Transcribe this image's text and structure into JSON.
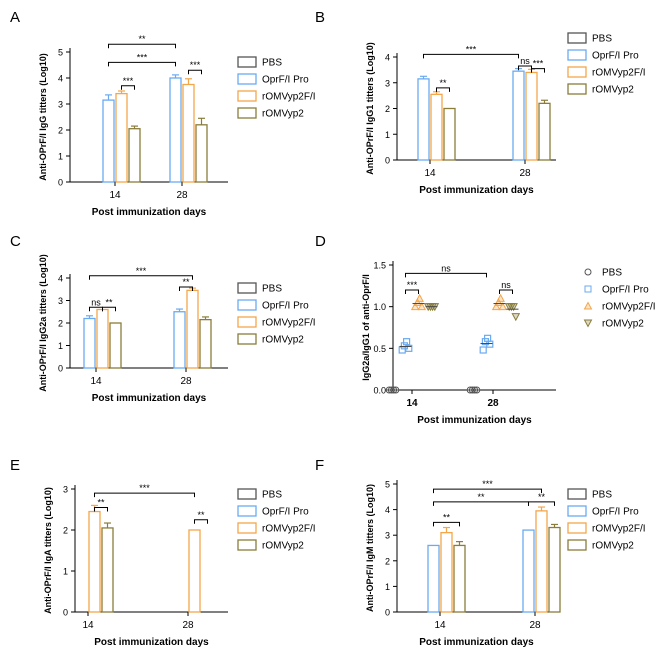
{
  "figure": {
    "panel_labels": [
      "A",
      "B",
      "C",
      "D",
      "E",
      "F"
    ]
  },
  "colors": {
    "PBS": "#555555",
    "OprF/I Pro": "#6aaaf0",
    "rOMVyp2F/I": "#f4a64a",
    "rOMVyp2": "#8a7d3a",
    "axis": "#000000"
  },
  "chart_data": [
    {
      "id": "A",
      "type": "bar",
      "panel_label": "A",
      "ylabel": "Anti-OPrF/I IgG titters (Log10)",
      "xlabel": "Post immunization days",
      "categories": [
        "14",
        "28"
      ],
      "ylim": [
        0,
        5
      ],
      "yticks": [
        "0",
        "1",
        "2",
        "3",
        "4",
        "5"
      ],
      "series": [
        {
          "name": "PBS",
          "values": [
            0,
            0
          ],
          "errors": [
            0,
            0
          ]
        },
        {
          "name": "OprF/I Pro",
          "values": [
            3.15,
            4.0
          ],
          "errors": [
            0.2,
            0.12
          ]
        },
        {
          "name": "rOMVyp2F/I",
          "values": [
            3.4,
            3.75
          ],
          "errors": [
            0.1,
            0.22
          ]
        },
        {
          "name": "rOMVyp2",
          "values": [
            2.05,
            2.2
          ],
          "errors": [
            0.1,
            0.25
          ]
        }
      ],
      "annotations": [
        {
          "label": "**",
          "from_cat": 0,
          "from_series": 1,
          "to_cat": 1,
          "to_series": 1,
          "y": 5.3
        },
        {
          "label": "***",
          "from_cat": 0,
          "from_series": 1,
          "to_cat": 1,
          "to_series": 1,
          "y": 4.6
        },
        {
          "label": "***",
          "from_cat": 0,
          "from_series": 2,
          "to_cat": 0,
          "to_series": 3,
          "y": 3.7
        },
        {
          "label": "***",
          "from_cat": 1,
          "from_series": 2,
          "to_cat": 1,
          "to_series": 3,
          "y": 4.3
        }
      ]
    },
    {
      "id": "B",
      "type": "bar",
      "panel_label": "B",
      "ylabel": "Anti-OPrF/I IgG1 titters (Log10)",
      "xlabel": "Post immunization days",
      "categories": [
        "14",
        "28"
      ],
      "ylim": [
        0,
        4
      ],
      "yticks": [
        "0",
        "1",
        "2",
        "3",
        "4"
      ],
      "series": [
        {
          "name": "PBS",
          "values": [
            0,
            0
          ],
          "errors": [
            0,
            0
          ]
        },
        {
          "name": "OprF/I Pro",
          "values": [
            3.15,
            3.45
          ],
          "errors": [
            0.1,
            0.1
          ]
        },
        {
          "name": "rOMVyp2F/I",
          "values": [
            2.55,
            3.4
          ],
          "errors": [
            0.1,
            0.12
          ]
        },
        {
          "name": "rOMVyp2",
          "values": [
            2.0,
            2.2
          ],
          "errors": [
            0,
            0.12
          ]
        }
      ],
      "annotations": [
        {
          "label": "***",
          "from_cat": 0,
          "from_series": 1,
          "to_cat": 1,
          "to_series": 1,
          "y": 4.1
        },
        {
          "label": "ns",
          "from_cat": 1,
          "from_series": 1,
          "to_cat": 1,
          "to_series": 2,
          "y": 3.65
        },
        {
          "label": "**",
          "from_cat": 0,
          "from_series": 2,
          "to_cat": 0,
          "to_series": 3,
          "y": 2.8
        },
        {
          "label": "***",
          "from_cat": 1,
          "from_series": 2,
          "to_cat": 1,
          "to_series": 3,
          "y": 3.55
        }
      ]
    },
    {
      "id": "C",
      "type": "bar",
      "panel_label": "C",
      "ylabel": "Anti-OPrF/I IgG2a titters (Log10)",
      "xlabel": "Post immunization days",
      "categories": [
        "14",
        "28"
      ],
      "ylim": [
        0,
        4
      ],
      "yticks": [
        "0",
        "1",
        "2",
        "3",
        "4"
      ],
      "series": [
        {
          "name": "PBS",
          "values": [
            0,
            0
          ],
          "errors": [
            0,
            0
          ]
        },
        {
          "name": "OprF/I Pro",
          "values": [
            2.2,
            2.5
          ],
          "errors": [
            0.12,
            0.12
          ]
        },
        {
          "name": "rOMVyp2F/I",
          "values": [
            2.6,
            3.45
          ],
          "errors": [
            0,
            0.1
          ]
        },
        {
          "name": "rOMVyp2",
          "values": [
            2.0,
            2.15
          ],
          "errors": [
            0,
            0.12
          ]
        }
      ],
      "annotations": [
        {
          "label": "***",
          "from_cat": 0,
          "from_series": 1,
          "to_cat": 1,
          "to_series": 2,
          "y": 4.1
        },
        {
          "label": "**",
          "from_cat": 1,
          "from_series": 1,
          "to_cat": 1,
          "to_series": 2,
          "y": 3.6
        },
        {
          "label": "ns",
          "from_cat": 0,
          "from_series": 1,
          "to_cat": 0,
          "to_series": 2,
          "y": 2.7
        },
        {
          "label": "**",
          "from_cat": 0,
          "from_series": 2,
          "to_cat": 0,
          "to_series": 3,
          "y": 2.7
        }
      ]
    },
    {
      "id": "D",
      "type": "scatter",
      "panel_label": "D",
      "ylabel": "IgG2a/IgG1 of anti-OprF/I",
      "xlabel": "Post immunization days",
      "categories": [
        "14",
        "28"
      ],
      "ylim": [
        0,
        1.5
      ],
      "yticks": [
        "0.0",
        "0.5",
        "1.0",
        "1.5"
      ],
      "series": [
        {
          "name": "PBS",
          "marker": "circle",
          "points": [
            [
              0,
              0,
              0,
              0
            ],
            [
              0,
              0,
              0,
              0
            ]
          ]
        },
        {
          "name": "OprF/I Pro",
          "marker": "square",
          "points": [
            [
              0.48,
              0.53,
              0.58,
              0.5
            ],
            [
              0.48,
              0.58,
              0.62,
              0.55
            ]
          ]
        },
        {
          "name": "rOMVyp2F/I",
          "marker": "triangle-up",
          "points": [
            [
              1.0,
              1.05,
              1.1,
              1.0
            ],
            [
              1.0,
              1.05,
              1.1,
              1.0
            ]
          ]
        },
        {
          "name": "rOMVyp2",
          "marker": "triangle-down",
          "points": [
            [
              1.0,
              1.0,
              1.0,
              1.0
            ],
            [
              1.0,
              1.0,
              1.0,
              0.88
            ]
          ]
        }
      ],
      "annotations": [
        {
          "label": "ns",
          "from_cat": 0,
          "from_series": 1,
          "to_cat": 1,
          "to_series": 1,
          "y": 1.4
        },
        {
          "label": "***",
          "from_cat": 0,
          "from_series": 1,
          "to_cat": 0,
          "to_series": 2,
          "y": 1.2
        },
        {
          "label": "ns",
          "from_cat": 1,
          "from_series": 2,
          "to_cat": 1,
          "to_series": 3,
          "y": 1.2
        }
      ]
    },
    {
      "id": "E",
      "type": "bar",
      "panel_label": "E",
      "ylabel": "Anti-OPrF/I IgA titters (Log10)",
      "xlabel": "Post immunization days",
      "categories": [
        "14",
        "28"
      ],
      "ylim": [
        0,
        3
      ],
      "yticks": [
        "0",
        "1",
        "2",
        "3"
      ],
      "series": [
        {
          "name": "PBS",
          "values": [
            0,
            0
          ],
          "errors": [
            0,
            0
          ]
        },
        {
          "name": "OprF/I Pro",
          "values": [
            0,
            0
          ],
          "errors": [
            0,
            0
          ]
        },
        {
          "name": "rOMVyp2F/I",
          "values": [
            2.45,
            2.0
          ],
          "errors": [
            0.15,
            0
          ]
        },
        {
          "name": "rOMVyp2",
          "values": [
            2.05,
            0
          ],
          "errors": [
            0.12,
            0
          ]
        }
      ],
      "annotations": [
        {
          "label": "***",
          "from_cat": 0,
          "from_series": 2,
          "to_cat": 1,
          "to_series": 2,
          "y": 2.9
        },
        {
          "label": "**",
          "from_cat": 0,
          "from_series": 2,
          "to_cat": 0,
          "to_series": 3,
          "y": 2.55
        },
        {
          "label": "**",
          "from_cat": 1,
          "from_series": 2,
          "to_cat": 1,
          "to_series": 3,
          "y": 2.25
        }
      ]
    },
    {
      "id": "F",
      "type": "bar",
      "panel_label": "F",
      "ylabel": "Anti-OPrF/I IgM titters (Log10)",
      "xlabel": "Post immunization days",
      "categories": [
        "14",
        "28"
      ],
      "ylim": [
        0,
        5
      ],
      "yticks": [
        "0",
        "1",
        "2",
        "3",
        "4",
        "5"
      ],
      "series": [
        {
          "name": "PBS",
          "values": [
            0,
            0
          ],
          "errors": [
            0,
            0
          ]
        },
        {
          "name": "OprF/I Pro",
          "values": [
            2.6,
            3.2
          ],
          "errors": [
            0,
            0
          ]
        },
        {
          "name": "rOMVyp2F/I",
          "values": [
            3.1,
            3.95
          ],
          "errors": [
            0.2,
            0.15
          ]
        },
        {
          "name": "rOMVyp2",
          "values": [
            2.6,
            3.3
          ],
          "errors": [
            0.15,
            0.12
          ]
        }
      ],
      "annotations": [
        {
          "label": "***",
          "from_cat": 0,
          "from_series": 1,
          "to_cat": 1,
          "to_series": 2,
          "y": 4.8
        },
        {
          "label": "**",
          "from_cat": 0,
          "from_series": 1,
          "to_cat": 1,
          "to_series": 1,
          "y": 4.3
        },
        {
          "label": "**",
          "from_cat": 0,
          "from_series": 1,
          "to_cat": 0,
          "to_series": 3,
          "y": 3.5
        },
        {
          "label": "**",
          "from_cat": 1,
          "from_series": 1,
          "to_cat": 1,
          "to_series": 3,
          "y": 4.3
        }
      ]
    }
  ]
}
